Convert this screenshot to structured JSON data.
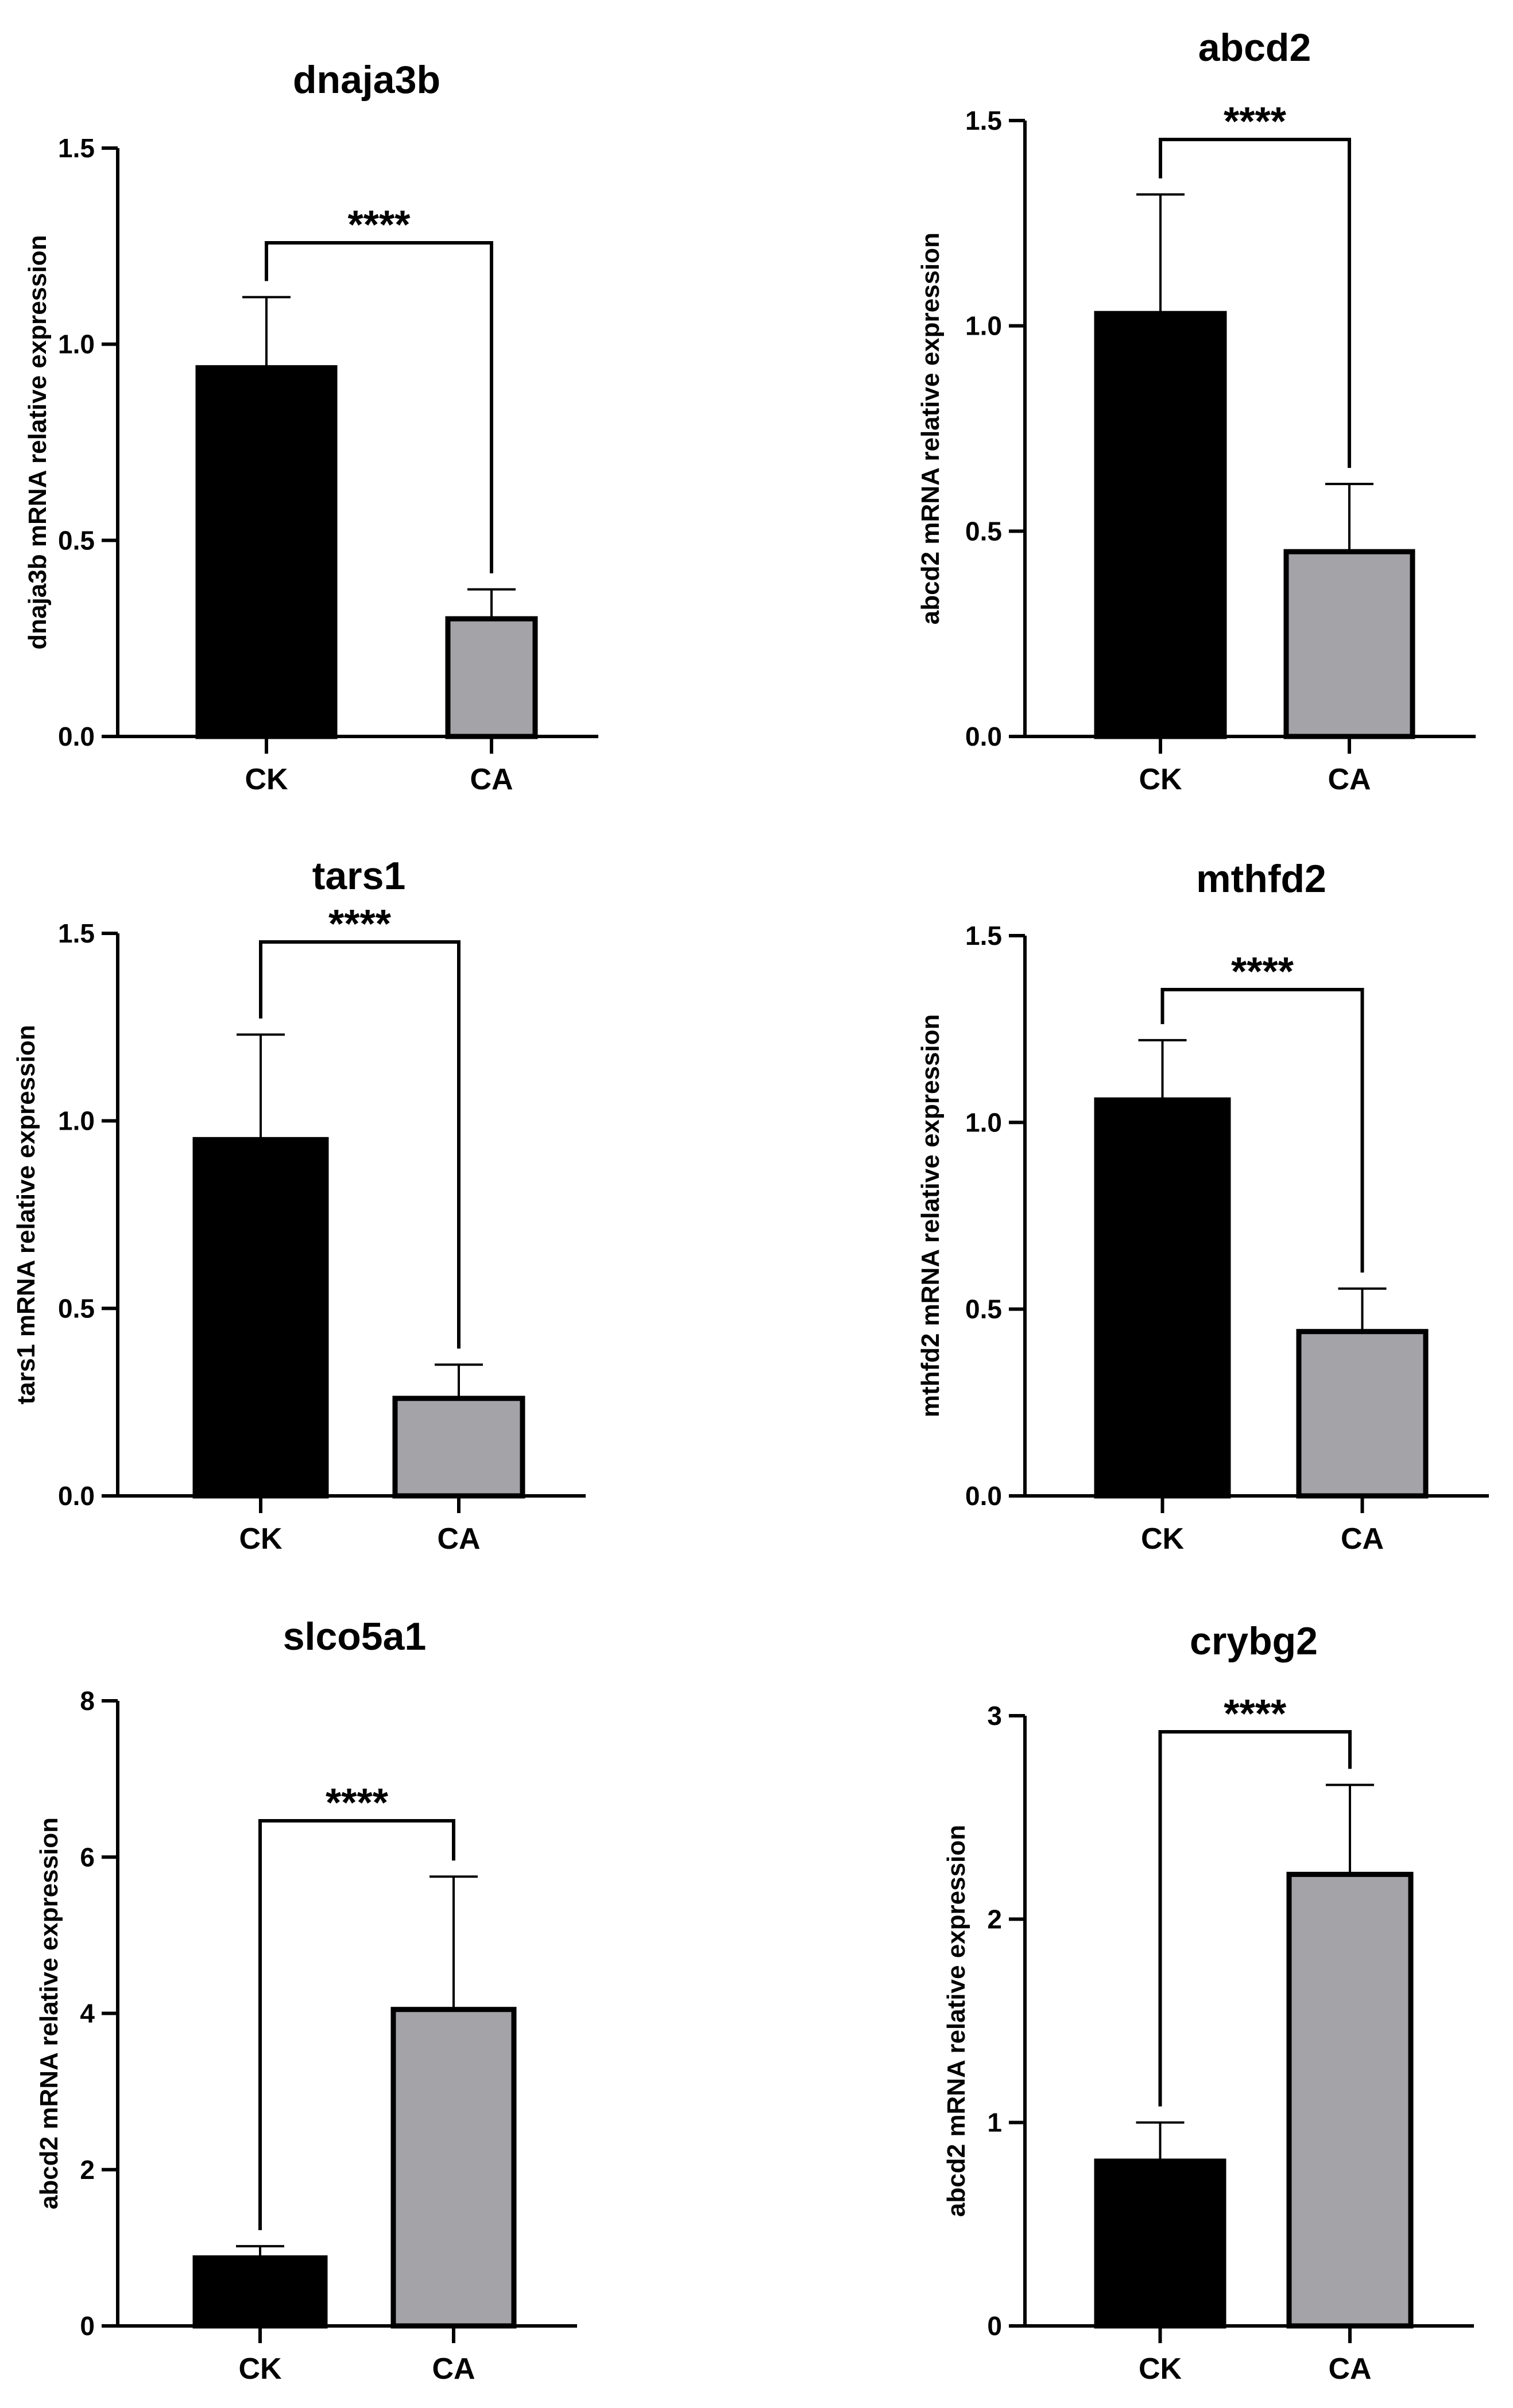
{
  "colors": {
    "ck": "#000000",
    "ca": "#a4a3a8",
    "axis": "#000000",
    "background": "#ffffff"
  },
  "chart_data": [
    {
      "type": "bar",
      "title": "dnaja3b",
      "ylabel": "dnaja3b mRNA relative expression",
      "xlabel": "",
      "categories": [
        "CK",
        "CA"
      ],
      "values": [
        0.94,
        0.3
      ],
      "errors": [
        0.18,
        0.075
      ],
      "ylim": [
        0,
        1.5
      ],
      "yticks": [
        0.0,
        0.5,
        1.0,
        1.5
      ],
      "ytick_labels": [
        "0.0",
        "0.5",
        "1.0",
        "1.5"
      ],
      "significance": "****",
      "grid": false
    },
    {
      "type": "bar",
      "title": "abcd2",
      "ylabel": "abcd2 mRNA relative expression",
      "xlabel": "",
      "categories": [
        "CK",
        "CA"
      ],
      "values": [
        1.03,
        0.45
      ],
      "errors": [
        0.29,
        0.165
      ],
      "ylim": [
        0,
        1.5
      ],
      "yticks": [
        0.0,
        0.5,
        1.0,
        1.5
      ],
      "ytick_labels": [
        "0.0",
        "0.5",
        "1.0",
        "1.5"
      ],
      "significance": "****",
      "grid": false
    },
    {
      "type": "bar",
      "title": "tars1",
      "ylabel": "tars1 mRNA relative expression",
      "xlabel": "",
      "categories": [
        "CK",
        "CA"
      ],
      "values": [
        0.95,
        0.26
      ],
      "errors": [
        0.28,
        0.09
      ],
      "ylim": [
        0,
        1.5
      ],
      "yticks": [
        0.0,
        0.5,
        1.0,
        1.5
      ],
      "ytick_labels": [
        "0.0",
        "0.5",
        "1.0",
        "1.5"
      ],
      "significance": "****",
      "grid": false
    },
    {
      "type": "bar",
      "title": "mthfd2",
      "ylabel": "mthfd2 mRNA relative expression",
      "xlabel": "",
      "categories": [
        "CK",
        "CA"
      ],
      "values": [
        1.06,
        0.44
      ],
      "errors": [
        0.16,
        0.115
      ],
      "ylim": [
        0,
        1.5
      ],
      "yticks": [
        0.0,
        0.5,
        1.0,
        1.5
      ],
      "ytick_labels": [
        "0.0",
        "0.5",
        "1.0",
        "1.5"
      ],
      "significance": "****",
      "grid": false
    },
    {
      "type": "bar",
      "title": "slco5a1",
      "ylabel": "abcd2 mRNA relative expression",
      "xlabel": "",
      "categories": [
        "CK",
        "CA"
      ],
      "values": [
        0.87,
        4.05
      ],
      "errors": [
        0.15,
        1.7
      ],
      "ylim": [
        0,
        8
      ],
      "yticks": [
        0,
        2,
        4,
        6,
        8
      ],
      "ytick_labels": [
        "0",
        "2",
        "4",
        "6",
        "8"
      ],
      "significance": "****",
      "grid": false
    },
    {
      "type": "bar",
      "title": "crybg2",
      "ylabel": "abcd2 mRNA relative expression",
      "xlabel": "",
      "categories": [
        "CK",
        "CA"
      ],
      "values": [
        0.81,
        2.22
      ],
      "errors": [
        0.19,
        0.44
      ],
      "ylim": [
        0,
        3
      ],
      "yticks": [
        0,
        1,
        2,
        3
      ],
      "ytick_labels": [
        "0",
        "1",
        "2",
        "3"
      ],
      "significance": "****",
      "grid": false
    }
  ]
}
